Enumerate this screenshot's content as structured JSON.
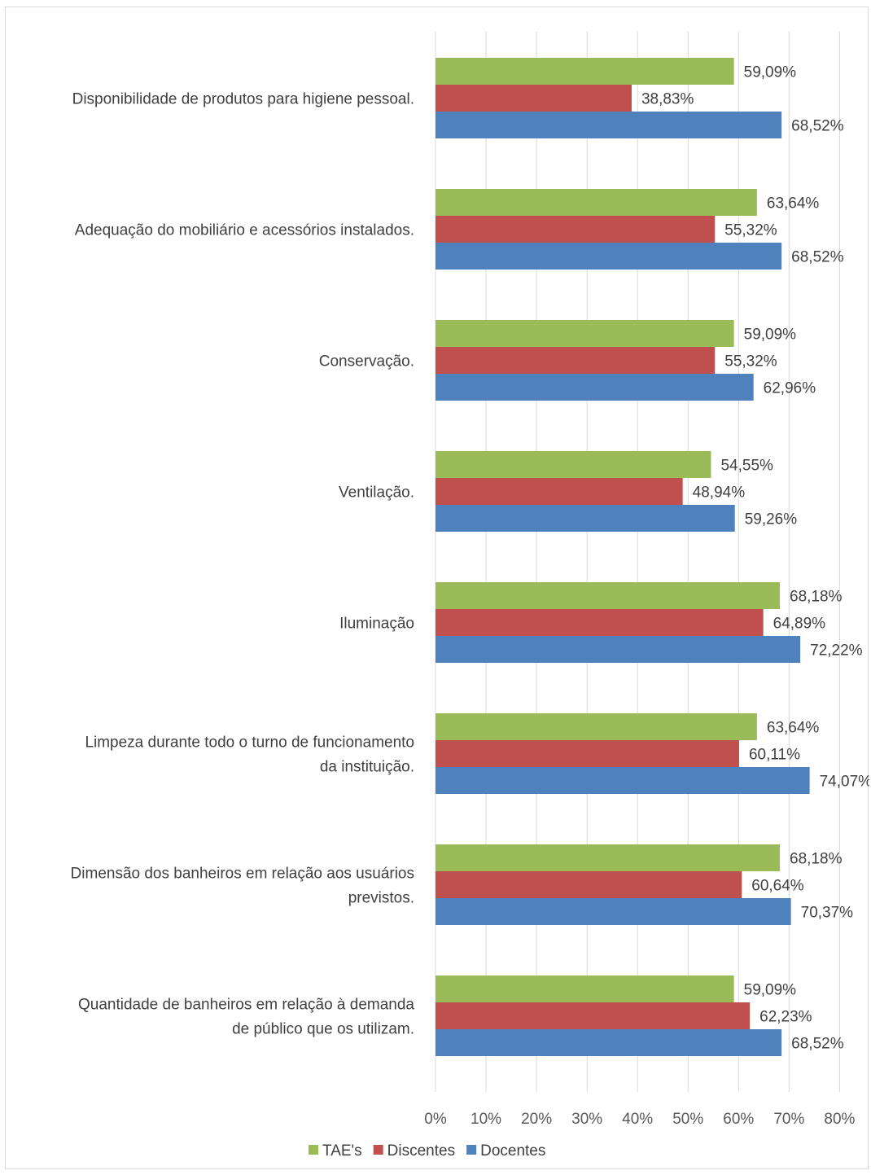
{
  "chart_data": {
    "type": "bar",
    "orientation": "horizontal",
    "categories": [
      [
        "Disponibilidade de produtos para higiene pessoal."
      ],
      [
        "Adequação do mobiliário e acessórios instalados."
      ],
      [
        "Conservação."
      ],
      [
        "Ventilação."
      ],
      [
        "Iluminação"
      ],
      [
        "Limpeza durante todo o turno de funcionamento",
        "da instituição."
      ],
      [
        "Dimensão dos banheiros em relação aos usuários",
        "previstos."
      ],
      [
        "Quantidade de banheiros em relação à demanda",
        "de público que  os utilizam."
      ]
    ],
    "series": [
      {
        "name": "TAE's",
        "color": "#9bbb59",
        "values": [
          59.09,
          63.64,
          59.09,
          54.55,
          68.18,
          63.64,
          68.18,
          59.09
        ],
        "labels": [
          "59,09%",
          "63,64%",
          "59,09%",
          "54,55%",
          "68,18%",
          "63,64%",
          "68,18%",
          "59,09%"
        ]
      },
      {
        "name": "Discentes",
        "color": "#c0504d",
        "values": [
          38.83,
          55.32,
          55.32,
          48.94,
          64.89,
          60.11,
          60.64,
          62.23
        ],
        "labels": [
          "38,83%",
          "55,32%",
          "55,32%",
          "48,94%",
          "64,89%",
          "60,11%",
          "60,64%",
          "62,23%"
        ]
      },
      {
        "name": "Docentes",
        "color": "#4f81bd",
        "values": [
          68.52,
          68.52,
          62.96,
          59.26,
          72.22,
          74.07,
          70.37,
          68.52
        ],
        "labels": [
          "68,52%",
          "68,52%",
          "62,96%",
          "59,26%",
          "72,22%",
          "74,07%",
          "70,37%",
          "68,52%"
        ]
      }
    ],
    "xlim": [
      0,
      80
    ],
    "ticks": [
      "0%",
      "10%",
      "20%",
      "30%",
      "40%",
      "50%",
      "60%",
      "70%",
      "80%"
    ],
    "grid": true,
    "legend_position": "bottom"
  }
}
